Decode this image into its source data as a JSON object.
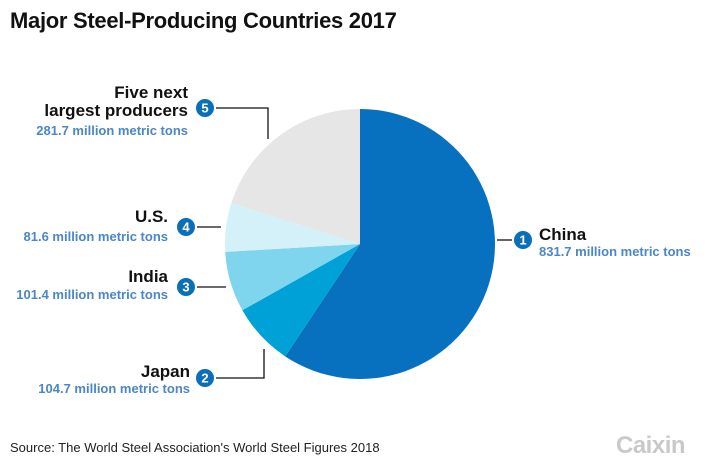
{
  "title": "Major Steel-Producing Countries 2017",
  "source": "Source: The World Steel Association's World Steel Figures 2018",
  "brand": "Caixin",
  "value_color": "#4a86c8",
  "badge_color": "#0b6fb8",
  "chart_data": {
    "type": "pie",
    "title": "Major Steel-Producing Countries 2017",
    "unit": "million metric tons",
    "slices": [
      {
        "rank": "1",
        "name": "China",
        "value": 831.7,
        "value_label": "831.7 million metric tons",
        "color": "#0771c0"
      },
      {
        "rank": "2",
        "name": "Japan",
        "value": 104.7,
        "value_label": "104.7 million metric tons",
        "color": "#00a1d7"
      },
      {
        "rank": "3",
        "name": "India",
        "value": 101.4,
        "value_label": "101.4 million metric tons",
        "color": "#7fd5ee"
      },
      {
        "rank": "4",
        "name": "U.S.",
        "value": 81.6,
        "value_label": "81.6 million metric tons",
        "color": "#d4f0f8"
      },
      {
        "rank": "5",
        "name": "Five next largest producers",
        "value": 281.7,
        "value_label": "281.7 million metric tons",
        "color": "#e6e6e6"
      }
    ]
  }
}
